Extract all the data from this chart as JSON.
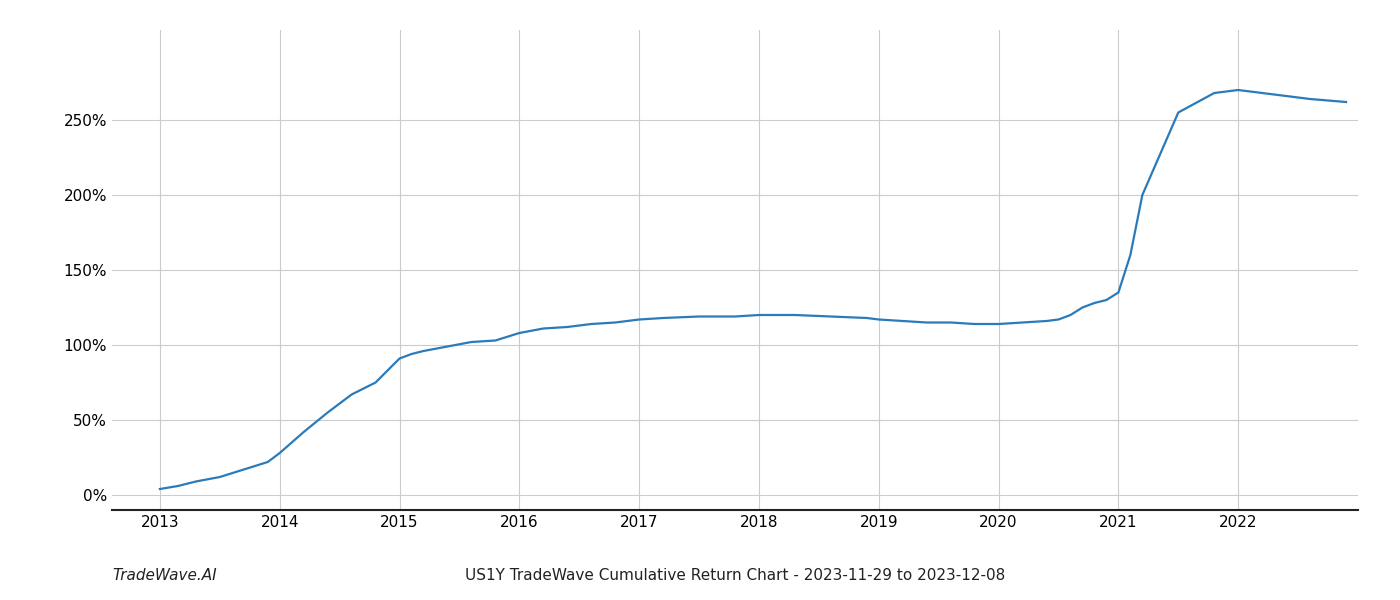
{
  "title": "US1Y TradeWave Cumulative Return Chart - 2023-11-29 to 2023-12-08",
  "watermark": "TradeWave.AI",
  "line_color": "#2b7bba",
  "background_color": "#ffffff",
  "grid_color": "#cccccc",
  "x_values": [
    2013.0,
    2013.15,
    2013.3,
    2013.5,
    2013.7,
    2013.9,
    2014.0,
    2014.2,
    2014.4,
    2014.6,
    2014.8,
    2015.0,
    2015.1,
    2015.2,
    2015.4,
    2015.6,
    2015.8,
    2016.0,
    2016.2,
    2016.4,
    2016.6,
    2016.8,
    2017.0,
    2017.2,
    2017.5,
    2017.8,
    2018.0,
    2018.3,
    2018.6,
    2018.9,
    2019.0,
    2019.2,
    2019.4,
    2019.6,
    2019.8,
    2020.0,
    2020.2,
    2020.4,
    2020.5,
    2020.6,
    2020.7,
    2020.8,
    2020.9,
    2021.0,
    2021.1,
    2021.2,
    2021.5,
    2021.8,
    2022.0,
    2022.3,
    2022.6,
    2022.9
  ],
  "y_values": [
    4,
    6,
    9,
    12,
    17,
    22,
    28,
    42,
    55,
    67,
    75,
    91,
    94,
    96,
    99,
    102,
    103,
    108,
    111,
    112,
    114,
    115,
    117,
    118,
    119,
    119,
    120,
    120,
    119,
    118,
    117,
    116,
    115,
    115,
    114,
    114,
    115,
    116,
    117,
    120,
    125,
    128,
    130,
    135,
    160,
    200,
    255,
    268,
    270,
    267,
    264,
    262
  ],
  "xlim": [
    2012.6,
    2023.0
  ],
  "ylim": [
    -10,
    310
  ],
  "yticks": [
    0,
    50,
    100,
    150,
    200,
    250
  ],
  "ytick_labels": [
    "0%",
    "50%",
    "100%",
    "150%",
    "200%",
    "250%"
  ],
  "xticks": [
    2013,
    2014,
    2015,
    2016,
    2017,
    2018,
    2019,
    2020,
    2021,
    2022
  ],
  "line_width": 1.6,
  "title_fontsize": 11,
  "tick_fontsize": 11,
  "watermark_fontsize": 11
}
